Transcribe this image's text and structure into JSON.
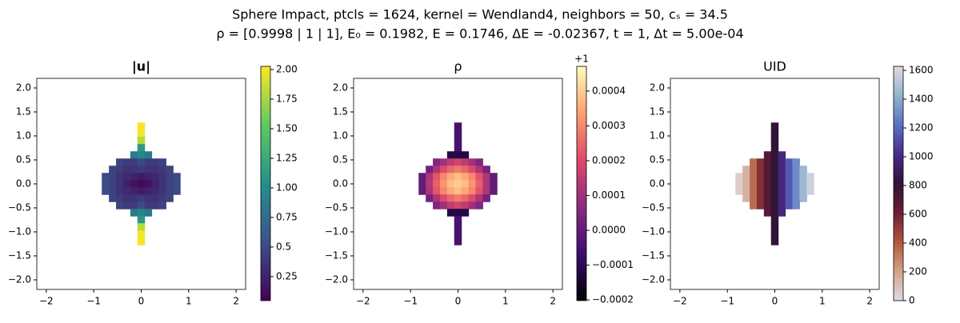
{
  "figure": {
    "title": "Sphere Impact, ptcls = 1624, kernel = Wendland4, neighbors = 50, cₛ = 34.5",
    "subtitle": "ρ = [0.9998 | 1 | 1], E₀ = 0.1982, E = 0.1746, ΔE = -0.02367, t = 1, Δt = 5.00e-04"
  },
  "chart_data": [
    {
      "type": "scatter",
      "title": "|u|",
      "x": [
        0,
        0,
        0,
        0,
        -0.15,
        0,
        0.15,
        -0.45,
        -0.3,
        -0.15,
        0,
        0.15,
        0.3,
        0.45,
        -0.6,
        -0.45,
        -0.3,
        -0.15,
        0,
        0.15,
        0.3,
        0.45,
        0.6,
        -0.75,
        -0.6,
        -0.45,
        -0.3,
        -0.15,
        0,
        0.15,
        0.3,
        0.45,
        0.6,
        0.75,
        -0.75,
        -0.6,
        -0.45,
        -0.3,
        -0.15,
        0,
        0.15,
        0.3,
        0.45,
        0.6,
        0.75,
        -0.75,
        -0.6,
        -0.45,
        -0.3,
        -0.15,
        0,
        0.15,
        0.3,
        0.45,
        0.6,
        0.75,
        -0.6,
        -0.45,
        -0.3,
        -0.15,
        0,
        0.15,
        0.3,
        0.45,
        0.6,
        -0.45,
        -0.3,
        -0.15,
        0,
        0.15,
        0.3,
        0.45,
        -0.15,
        0,
        0.15,
        0,
        0,
        0,
        0
      ],
      "y": [
        1.2,
        1.05,
        0.9,
        0.75,
        0.6,
        0.6,
        0.6,
        0.45,
        0.45,
        0.45,
        0.45,
        0.45,
        0.45,
        0.45,
        0.3,
        0.3,
        0.3,
        0.3,
        0.3,
        0.3,
        0.3,
        0.3,
        0.3,
        0.15,
        0.15,
        0.15,
        0.15,
        0.15,
        0.15,
        0.15,
        0.15,
        0.15,
        0.15,
        0.15,
        0,
        0,
        0,
        0,
        0,
        0,
        0,
        0,
        0,
        0,
        0,
        -0.15,
        -0.15,
        -0.15,
        -0.15,
        -0.15,
        -0.15,
        -0.15,
        -0.15,
        -0.15,
        -0.15,
        -0.15,
        -0.3,
        -0.3,
        -0.3,
        -0.3,
        -0.3,
        -0.3,
        -0.3,
        -0.3,
        -0.3,
        -0.45,
        -0.45,
        -0.45,
        -0.45,
        -0.45,
        -0.45,
        -0.45,
        -0.6,
        -0.6,
        -0.6,
        -0.75,
        -0.9,
        -1.05,
        -1.2
      ],
      "values": [
        2.0,
        2.0,
        1.8,
        1.1,
        0.85,
        0.95,
        0.85,
        0.45,
        0.4,
        0.4,
        0.5,
        0.4,
        0.4,
        0.45,
        0.45,
        0.4,
        0.35,
        0.35,
        0.4,
        0.35,
        0.35,
        0.4,
        0.45,
        0.5,
        0.45,
        0.35,
        0.3,
        0.25,
        0.2,
        0.25,
        0.3,
        0.35,
        0.45,
        0.5,
        0.5,
        0.45,
        0.35,
        0.25,
        0.15,
        0.1,
        0.15,
        0.25,
        0.35,
        0.45,
        0.5,
        0.5,
        0.45,
        0.35,
        0.3,
        0.25,
        0.2,
        0.25,
        0.3,
        0.35,
        0.45,
        0.5,
        0.45,
        0.4,
        0.35,
        0.35,
        0.4,
        0.35,
        0.35,
        0.4,
        0.45,
        0.45,
        0.4,
        0.4,
        0.5,
        0.4,
        0.4,
        0.45,
        0.85,
        0.95,
        0.85,
        1.1,
        1.8,
        2.0,
        2.0
      ],
      "xlim": [
        -2.2,
        2.2
      ],
      "ylim": [
        -2.2,
        2.2
      ],
      "xticks": [
        {
          "value": -2,
          "label": "−2"
        },
        {
          "value": -1,
          "label": "−1"
        },
        0,
        1,
        2
      ],
      "yticks": [
        {
          "value": -2,
          "label": "−2.0"
        },
        {
          "value": -1.5,
          "label": "−1.5"
        },
        {
          "value": -1,
          "label": "−1.0"
        },
        {
          "value": -0.5,
          "label": "−0.5"
        },
        {
          "value": 0,
          "label": "0.0"
        },
        0.5,
        {
          "value": 1,
          "label": "1.0"
        },
        1.5,
        {
          "value": 2,
          "label": "2.0"
        }
      ],
      "clim": [
        0.047,
        2.027
      ],
      "cticks": [
        0.25,
        0.5,
        0.75,
        {
          "value": 1,
          "label": "1.00"
        },
        1.25,
        {
          "value": 1.5,
          "label": "1.50"
        },
        1.75,
        {
          "value": 2,
          "label": "2.00"
        }
      ],
      "colormap": [
        "#440154",
        "#3b528b",
        "#21918c",
        "#5ec962",
        "#fde725"
      ]
    },
    {
      "type": "scatter",
      "title": "ρ",
      "x": [
        0,
        0,
        0,
        0,
        -0.15,
        0,
        0.15,
        -0.45,
        -0.3,
        -0.15,
        0,
        0.15,
        0.3,
        0.45,
        -0.6,
        -0.45,
        -0.3,
        -0.15,
        0,
        0.15,
        0.3,
        0.45,
        0.6,
        -0.75,
        -0.6,
        -0.45,
        -0.3,
        -0.15,
        0,
        0.15,
        0.3,
        0.45,
        0.6,
        0.75,
        -0.75,
        -0.6,
        -0.45,
        -0.3,
        -0.15,
        0,
        0.15,
        0.3,
        0.45,
        0.6,
        0.75,
        -0.75,
        -0.6,
        -0.45,
        -0.3,
        -0.15,
        0,
        0.15,
        0.3,
        0.45,
        0.6,
        0.75,
        -0.6,
        -0.45,
        -0.3,
        -0.15,
        0,
        0.15,
        0.3,
        0.45,
        0.6,
        -0.45,
        -0.3,
        -0.15,
        0,
        0.15,
        0.3,
        0.45,
        -0.15,
        0,
        0.15,
        0,
        0,
        0,
        0
      ],
      "y": [
        1.2,
        1.05,
        0.9,
        0.75,
        0.6,
        0.6,
        0.6,
        0.45,
        0.45,
        0.45,
        0.45,
        0.45,
        0.45,
        0.45,
        0.3,
        0.3,
        0.3,
        0.3,
        0.3,
        0.3,
        0.3,
        0.3,
        0.3,
        0.15,
        0.15,
        0.15,
        0.15,
        0.15,
        0.15,
        0.15,
        0.15,
        0.15,
        0.15,
        0.15,
        0,
        0,
        0,
        0,
        0,
        0,
        0,
        0,
        0,
        0,
        0,
        -0.15,
        -0.15,
        -0.15,
        -0.15,
        -0.15,
        -0.15,
        -0.15,
        -0.15,
        -0.15,
        -0.15,
        -0.15,
        -0.3,
        -0.3,
        -0.3,
        -0.3,
        -0.3,
        -0.3,
        -0.3,
        -0.3,
        -0.3,
        -0.45,
        -0.45,
        -0.45,
        -0.45,
        -0.45,
        -0.45,
        -0.45,
        -0.6,
        -0.6,
        -0.6,
        -0.75,
        -0.9,
        -1.05,
        -1.2
      ],
      "values": [
        -5e-05,
        -5e-05,
        -5e-05,
        -5e-05,
        -0.00012,
        -0.00012,
        -0.00012,
        5e-05,
        0.0001,
        0.00015,
        0.00018,
        0.00015,
        0.0001,
        5e-05,
        3e-05,
        0.00012,
        0.0002,
        0.00025,
        0.00028,
        0.00025,
        0.0002,
        0.00012,
        3e-05,
        0,
        0.00012,
        0.00022,
        0.0003,
        0.00035,
        0.00038,
        0.00035,
        0.0003,
        0.00022,
        0.00012,
        0,
        0,
        0.00013,
        0.00024,
        0.00032,
        0.00038,
        0.0004,
        0.00038,
        0.00032,
        0.00024,
        0.00013,
        0,
        0,
        0.00012,
        0.00022,
        0.0003,
        0.00035,
        0.00038,
        0.00035,
        0.0003,
        0.00022,
        0.00012,
        0,
        3e-05,
        0.00012,
        0.0002,
        0.00025,
        0.00028,
        0.00025,
        0.0002,
        0.00012,
        3e-05,
        5e-05,
        0.0001,
        0.00015,
        0.00018,
        0.00015,
        0.0001,
        5e-05,
        -0.00012,
        -0.00012,
        -0.00012,
        -5e-05,
        -5e-05,
        -5e-05,
        -5e-05
      ],
      "xlim": [
        -2.2,
        2.2
      ],
      "ylim": [
        -2.2,
        2.2
      ],
      "xticks": [
        {
          "value": -2,
          "label": "−2"
        },
        {
          "value": -1,
          "label": "−1"
        },
        0,
        1,
        2
      ],
      "yticks": [
        {
          "value": -2,
          "label": "−2.0"
        },
        {
          "value": -1.5,
          "label": "−1.5"
        },
        {
          "value": -1,
          "label": "−1.0"
        },
        {
          "value": -0.5,
          "label": "−0.5"
        },
        {
          "value": 0,
          "label": "0.0"
        },
        0.5,
        {
          "value": 1,
          "label": "1.0"
        },
        1.5,
        {
          "value": 2,
          "label": "2.0"
        }
      ],
      "clim": [
        -0.000202,
        0.000471
      ],
      "cticks": [
        {
          "value": -0.0002,
          "label": "−0.0002"
        },
        {
          "value": -0.0001,
          "label": "−0.0001"
        },
        {
          "value": 0,
          "label": "0.0000"
        },
        0.0001,
        0.0002,
        0.0003,
        0.0004
      ],
      "colorbar_offset": "+1",
      "colormap": [
        "#000004",
        "#3b0f70",
        "#8c2981",
        "#de4968",
        "#fe9f6d",
        "#fcfdbf"
      ]
    },
    {
      "type": "scatter",
      "title": "UID",
      "x": [
        0,
        0,
        0,
        0,
        -0.15,
        0,
        0.15,
        -0.45,
        -0.3,
        -0.15,
        0,
        0.15,
        0.3,
        0.45,
        -0.6,
        -0.45,
        -0.3,
        -0.15,
        0,
        0.15,
        0.3,
        0.45,
        0.6,
        -0.75,
        -0.6,
        -0.45,
        -0.3,
        -0.15,
        0,
        0.15,
        0.3,
        0.45,
        0.6,
        0.75,
        -0.75,
        -0.6,
        -0.45,
        -0.3,
        -0.15,
        0,
        0.15,
        0.3,
        0.45,
        0.6,
        0.75,
        -0.75,
        -0.6,
        -0.45,
        -0.3,
        -0.15,
        0,
        0.15,
        0.3,
        0.45,
        0.6,
        0.75,
        -0.6,
        -0.45,
        -0.3,
        -0.15,
        0,
        0.15,
        0.3,
        0.45,
        0.6,
        -0.45,
        -0.3,
        -0.15,
        0,
        0.15,
        0.3,
        0.45,
        -0.15,
        0,
        0.15,
        0,
        0,
        0,
        0
      ],
      "y": [
        1.2,
        1.05,
        0.9,
        0.75,
        0.6,
        0.6,
        0.6,
        0.45,
        0.45,
        0.45,
        0.45,
        0.45,
        0.45,
        0.45,
        0.3,
        0.3,
        0.3,
        0.3,
        0.3,
        0.3,
        0.3,
        0.3,
        0.3,
        0.15,
        0.15,
        0.15,
        0.15,
        0.15,
        0.15,
        0.15,
        0.15,
        0.15,
        0.15,
        0.15,
        0,
        0,
        0,
        0,
        0,
        0,
        0,
        0,
        0,
        0,
        0,
        -0.15,
        -0.15,
        -0.15,
        -0.15,
        -0.15,
        -0.15,
        -0.15,
        -0.15,
        -0.15,
        -0.15,
        -0.15,
        -0.3,
        -0.3,
        -0.3,
        -0.3,
        -0.3,
        -0.3,
        -0.3,
        -0.3,
        -0.3,
        -0.45,
        -0.45,
        -0.45,
        -0.45,
        -0.45,
        -0.45,
        -0.45,
        -0.6,
        -0.6,
        -0.6,
        -0.75,
        -0.9,
        -1.05,
        -1.2
      ],
      "values": [
        820,
        820,
        820,
        820,
        700,
        820,
        980,
        350,
        550,
        700,
        820,
        980,
        1150,
        1300,
        150,
        350,
        550,
        700,
        820,
        980,
        1150,
        1300,
        1450,
        50,
        150,
        350,
        550,
        700,
        820,
        980,
        1150,
        1300,
        1450,
        1580,
        50,
        150,
        350,
        550,
        700,
        820,
        980,
        1150,
        1300,
        1450,
        1580,
        50,
        150,
        350,
        550,
        700,
        820,
        980,
        1150,
        1300,
        1450,
        1580,
        150,
        350,
        550,
        700,
        820,
        980,
        1150,
        1300,
        1450,
        350,
        550,
        700,
        820,
        980,
        1150,
        1300,
        700,
        820,
        980,
        820,
        820,
        820,
        820
      ],
      "xlim": [
        -2.2,
        2.2
      ],
      "ylim": [
        -2.2,
        2.2
      ],
      "xticks": [
        {
          "value": -2,
          "label": "−2"
        },
        {
          "value": -1,
          "label": "−1"
        },
        0,
        1,
        2
      ],
      "yticks": [
        {
          "value": -2,
          "label": "−2.0"
        },
        {
          "value": -1.5,
          "label": "−1.5"
        },
        {
          "value": -1,
          "label": "−1.0"
        },
        {
          "value": -0.5,
          "label": "−0.5"
        },
        {
          "value": 0,
          "label": "0.0"
        },
        0.5,
        {
          "value": 1,
          "label": "1.0"
        },
        1.5,
        {
          "value": 2,
          "label": "2.0"
        }
      ],
      "clim": [
        0,
        1628
      ],
      "cticks": [
        0,
        200,
        400,
        600,
        800,
        1000,
        1200,
        1400,
        1600
      ],
      "colormap": [
        "#e2d9e2",
        "#d1a488",
        "#b3553b",
        "#6d1f32",
        "#2f1436",
        "#4a2b8a",
        "#5b6fc4",
        "#90b4cd",
        "#e2d9e2"
      ]
    }
  ]
}
